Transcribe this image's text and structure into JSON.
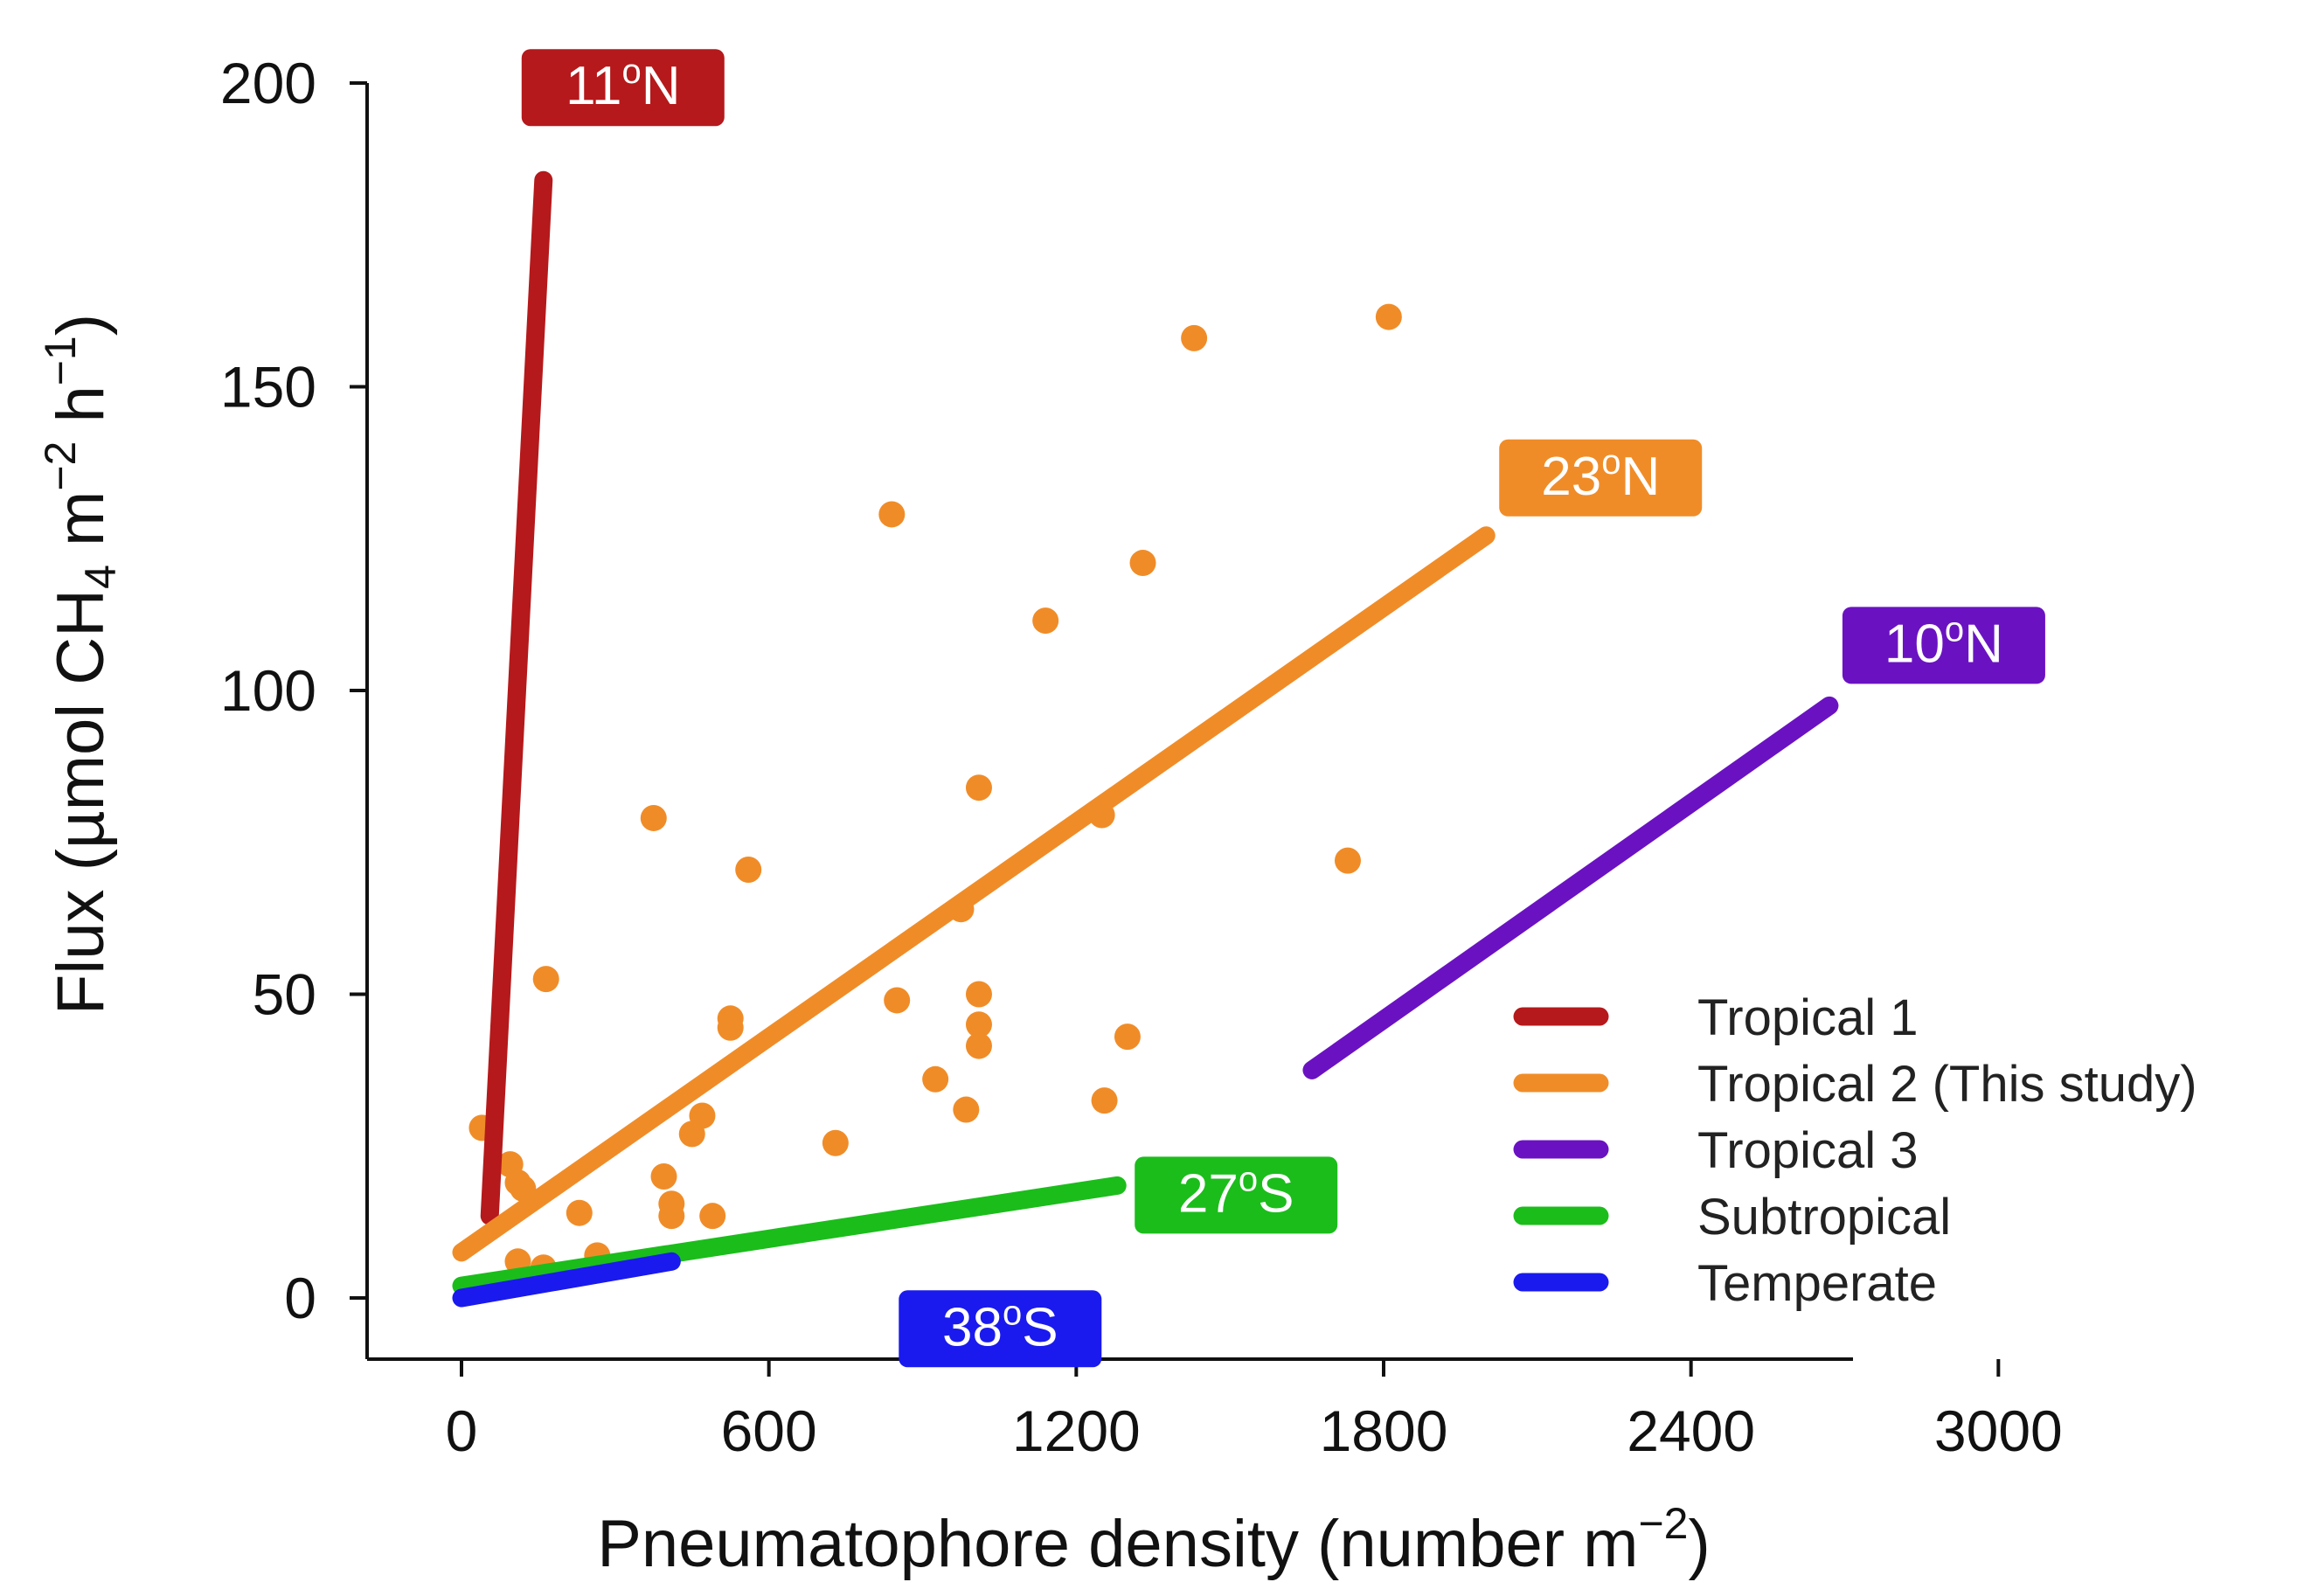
{
  "chart_data": {
    "type": "scatter",
    "xlabel": {
      "main": "Pneumatophore density (number m",
      "sup": "−2",
      "close": ")"
    },
    "ylabel": {
      "p1": "Flux (µmol CH",
      "sub": "4",
      "p2": " m",
      "sup1": "−2",
      "p3": " h",
      "sup2": "−1",
      "p4": ")"
    },
    "xlim": [
      -200,
      3000
    ],
    "ylim": [
      -10,
      200
    ],
    "xticks": [
      0,
      600,
      1200,
      1800,
      2400,
      3000
    ],
    "yticks": [
      0,
      50,
      100,
      150,
      200
    ],
    "grid": false,
    "legend_position": "bottom-right",
    "scatter_color": "#f08c28",
    "points": [
      [
        40,
        28
      ],
      [
        95,
        22
      ],
      [
        110,
        19
      ],
      [
        110,
        6
      ],
      [
        120,
        18
      ],
      [
        160,
        5
      ],
      [
        165,
        52.5
      ],
      [
        230,
        14
      ],
      [
        265,
        7
      ],
      [
        375,
        79
      ],
      [
        395,
        20
      ],
      [
        410,
        13.5
      ],
      [
        410,
        15.5
      ],
      [
        450,
        27
      ],
      [
        470,
        30
      ],
      [
        490,
        13.5
      ],
      [
        525,
        46
      ],
      [
        525,
        44.5
      ],
      [
        560,
        70.5
      ],
      [
        730,
        25.5
      ],
      [
        840,
        129
      ],
      [
        850,
        49
      ],
      [
        925,
        36
      ],
      [
        975,
        64
      ],
      [
        985,
        31
      ],
      [
        1010,
        84
      ],
      [
        1010,
        50
      ],
      [
        1010,
        45
      ],
      [
        1010,
        41.5
      ],
      [
        1140,
        111.5
      ],
      [
        1250,
        79.5
      ],
      [
        1255,
        32.5
      ],
      [
        1300,
        43
      ],
      [
        1330,
        121
      ],
      [
        1430,
        158
      ],
      [
        1730,
        72
      ],
      [
        1810,
        161.5
      ]
    ],
    "series": [
      {
        "name": "Tropical 1",
        "color": "#b5191b",
        "x": [
          55,
          160
        ],
        "y": [
          13.5,
          184
        ],
        "badge": {
          "sup": "o",
          "pre": "11",
          "post": "N"
        }
      },
      {
        "name": "Tropical 2 (This study)",
        "color": "#f08c28",
        "x": [
          0,
          2000
        ],
        "y": [
          7.5,
          125.5
        ],
        "badge": {
          "sup": "o",
          "pre": "23",
          "post": "N"
        }
      },
      {
        "name": "Tropical 3",
        "color": "#6a12c2",
        "x": [
          1660,
          2670
        ],
        "y": [
          37.5,
          97.5
        ],
        "badge": {
          "sup": "o",
          "pre": "10",
          "post": "N"
        }
      },
      {
        "name": "Subtropical",
        "color": "#1bbd1b",
        "x": [
          0,
          1280
        ],
        "y": [
          2,
          18.5
        ],
        "badge": {
          "sup": "o",
          "pre": "27",
          "post": "S"
        }
      },
      {
        "name": "Temperate",
        "color": "#1a1aee",
        "x": [
          0,
          410
        ],
        "y": [
          0,
          6
        ],
        "badge": {
          "sup": "o",
          "pre": "38",
          "post": "S"
        }
      }
    ]
  }
}
